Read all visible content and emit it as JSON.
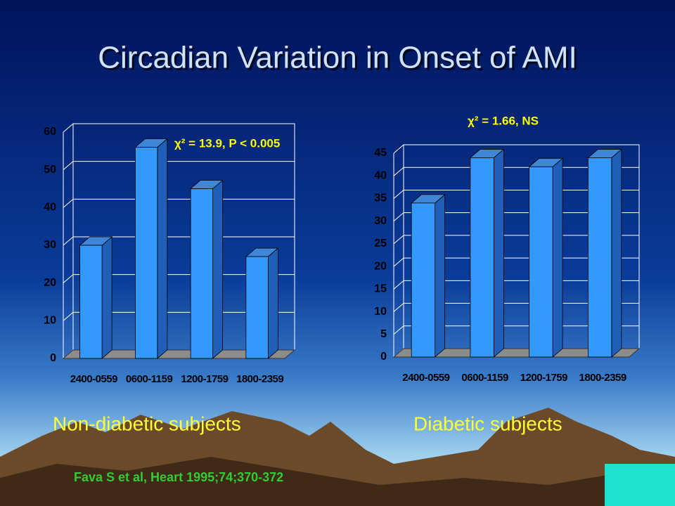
{
  "title": "Circadian Variation in Onset of AMI",
  "citation": "Fava S et al, Heart 1995;74;370-372",
  "chart_data": [
    {
      "type": "bar",
      "caption": "Non-diabetic subjects",
      "annotation": "χ² = 13.9, P < 0.005",
      "categories": [
        "2400-0559",
        "0600-1159",
        "1200-1759",
        "1800-2359"
      ],
      "values": [
        30,
        56,
        45,
        27
      ],
      "color": "#3399ff",
      "ylim": [
        0,
        60
      ],
      "yticks": [
        0,
        10,
        20,
        30,
        40,
        50,
        60
      ],
      "grid": true
    },
    {
      "type": "bar",
      "caption": "Diabetic subjects",
      "annotation": "χ² = 1.66, NS",
      "categories": [
        "2400-0559",
        "0600-1159",
        "1200-1759",
        "1800-2359"
      ],
      "values": [
        34,
        44,
        42,
        44
      ],
      "color": "#3399ff",
      "ylim": [
        0,
        45
      ],
      "yticks": [
        0,
        5,
        10,
        15,
        20,
        25,
        30,
        35,
        40,
        45
      ],
      "grid": true
    }
  ]
}
